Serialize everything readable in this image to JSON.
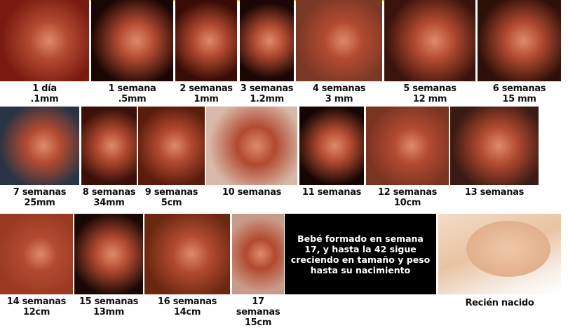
{
  "stages": [
    {
      "week": "1 día",
      "size": ".1mm"
    },
    {
      "week": "1 semana",
      "size": ".5mm"
    },
    {
      "week": "2 semanas",
      "size": "1mm"
    },
    {
      "week": "3 semanas",
      "size": "1.2mm"
    },
    {
      "week": "4 semanas",
      "size": "3 mm"
    },
    {
      "week": "5 semanas",
      "size": "12 mm"
    },
    {
      "week": "6 semanas",
      "size": "15 mm"
    },
    {
      "week": "7 semanas",
      "size": "25mm"
    },
    {
      "week": "8 semanas",
      "size": "34mm"
    },
    {
      "week": "9 semanas",
      "size": "5cm"
    },
    {
      "week": "10 semanas",
      "size": ""
    },
    {
      "week": "11 semanas",
      "size": ""
    },
    {
      "week": "12 semanas",
      "size": "10cm"
    },
    {
      "week": "13 semanas",
      "size": ""
    },
    {
      "week": "14 semanas",
      "size": "12cm"
    },
    {
      "week": "15 semanas",
      "size": "13mm"
    },
    {
      "week": "16 semanas",
      "size": "14cm"
    },
    {
      "week": "17 semanas",
      "size": "15cm"
    }
  ],
  "note": "Bebé formado en semana 17, y hasta la 42 sigue creciendo en tamaño y peso hasta su nacimiento",
  "newborn": {
    "label": "Recién nacido"
  }
}
